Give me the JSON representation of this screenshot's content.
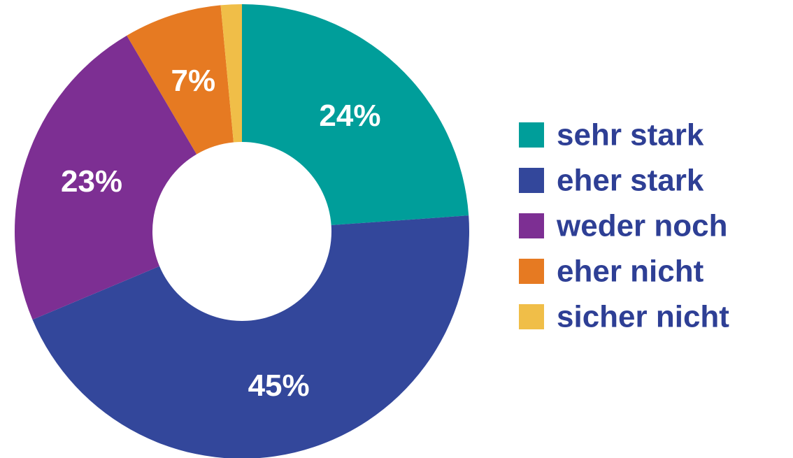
{
  "chart_data": {
    "type": "pie",
    "variant": "donut",
    "title": "",
    "categories": [
      "sehr stark",
      "eher stark",
      "weder noch",
      "eher nicht",
      "sicher nicht"
    ],
    "values": [
      24,
      45,
      23,
      7,
      1.5
    ],
    "data_labels": [
      "24%",
      "45%",
      "23%",
      "7%",
      ""
    ],
    "colors": [
      "#009E9A",
      "#33479B",
      "#7D2F93",
      "#E67A22",
      "#F0BE48"
    ],
    "legend": {
      "placement": "right",
      "text_color": "#2E3F95"
    },
    "start_angle_deg": 0,
    "direction": "clockwise"
  }
}
